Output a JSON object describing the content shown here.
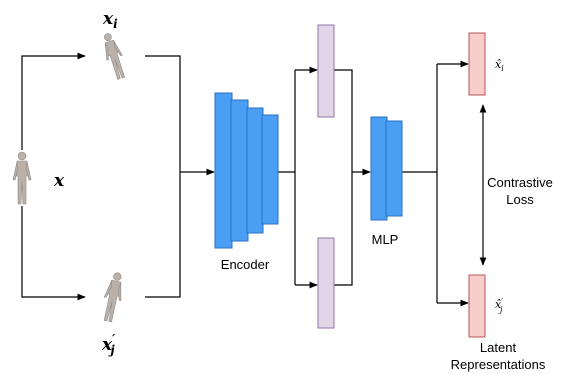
{
  "inputs": {
    "anchor": {
      "base": "x"
    },
    "view_i": {
      "base": "x",
      "sub": "i"
    },
    "view_j": {
      "base": "x",
      "prime": "′",
      "sub": "j"
    }
  },
  "modules": {
    "encoder": "Encoder",
    "mlp": "MLP"
  },
  "outputs": {
    "z_i": {
      "base": "x̂",
      "sub": "i"
    },
    "z_j": {
      "base": "x̂",
      "prime": "′",
      "sub": "j"
    },
    "caption": [
      "Latent",
      "Representations"
    ]
  },
  "loss": [
    "Contrastive",
    "Loss"
  ]
}
